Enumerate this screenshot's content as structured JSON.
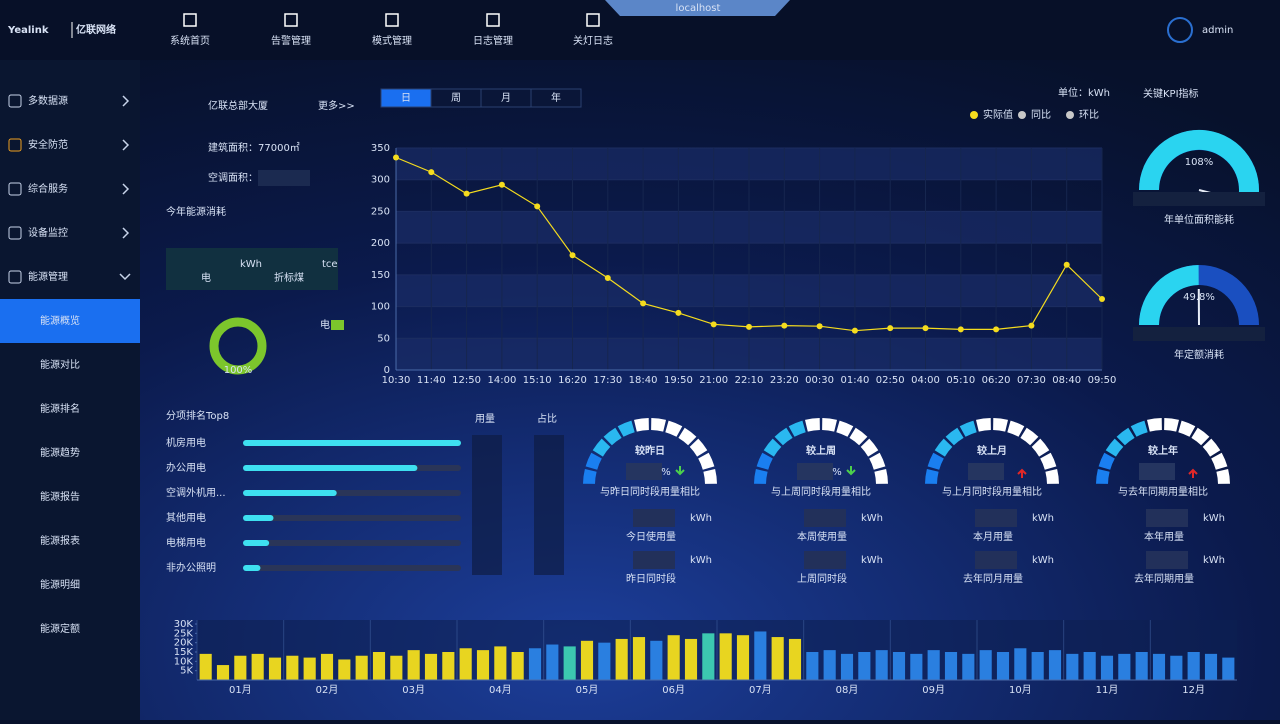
{
  "header": {
    "logo": "Yealink",
    "logo_cn": "亿联网络",
    "nav": [
      "系统首页",
      "告警管理",
      "模式管理",
      "日志管理",
      "关灯日志"
    ],
    "window": "localhost",
    "user": "admin"
  },
  "sidebar": {
    "groups": [
      "多数据源",
      "安全防范",
      "综合服务",
      "设备监控",
      "能源管理"
    ],
    "items": [
      "能源概览",
      "能源对比",
      "能源排名",
      "能源趋势",
      "能源报告",
      "能源报表",
      "能源明细",
      "能源定额"
    ],
    "active": 0
  },
  "building": {
    "name": "亿联总部大厦",
    "more": "更多>>",
    "area": "建筑面积：77000㎡",
    "ac_area": "空调面积：",
    "energy_title": "今年能源消耗",
    "unit1": "kWh",
    "unit2": "tce",
    "label1": "电",
    "label2": "折标煤"
  },
  "tabs": [
    "日",
    "周",
    "月",
    "年"
  ],
  "kpi_title": "关键KPI指标",
  "compare": [
    {
      "title": "较昨日",
      "pct": "%",
      "trend": "down",
      "desc": "与昨日同时段用量相比",
      "rows": [
        {
          "unit": "kWh",
          "label": "今日使用量"
        },
        {
          "unit": "kWh",
          "label": "昨日同时段"
        }
      ]
    },
    {
      "title": "较上周",
      "pct": "%",
      "trend": "down",
      "desc": "与上周同时段用量相比",
      "rows": [
        {
          "unit": "kWh",
          "label": "本周使用量"
        },
        {
          "unit": "kWh",
          "label": "上周同时段"
        }
      ]
    },
    {
      "title": "较上月",
      "trend": "up",
      "desc": "与上月同时段用量相比",
      "rows": [
        {
          "unit": "kWh",
          "label": "本月用量"
        },
        {
          "unit": "kWh",
          "label": "去年同月用量"
        }
      ]
    },
    {
      "title": "较上年",
      "trend": "up",
      "desc": "与去年同期用量相比",
      "rows": [
        {
          "unit": "kWh",
          "label": "本年用量"
        },
        {
          "unit": "kWh",
          "label": "去年同期用量"
        }
      ]
    }
  ],
  "chart_data": [
    {
      "type": "line",
      "unit_label": "单位：kWh",
      "categories": [
        "10:30",
        "11:40",
        "12:50",
        "14:00",
        "15:10",
        "16:20",
        "17:30",
        "18:40",
        "19:50",
        "21:00",
        "22:10",
        "23:20",
        "00:30",
        "01:40",
        "02:50",
        "04:00",
        "05:10",
        "06:20",
        "07:30",
        "08:40",
        "09:50"
      ],
      "series": [
        {
          "name": "实际值",
          "color": "#f5dc1e",
          "values": [
            335,
            312,
            278,
            292,
            258,
            181,
            145,
            105,
            90,
            72,
            68,
            70,
            69,
            62,
            66,
            66,
            64,
            64,
            70,
            166,
            112
          ]
        },
        {
          "name": "同比",
          "color": "#c8c8c8",
          "values": [
            null,
            null,
            null,
            null,
            null,
            null,
            null,
            null,
            null,
            null,
            null,
            null,
            null,
            null,
            null,
            null,
            null,
            null,
            null,
            null,
            null
          ]
        },
        {
          "name": "环比",
          "color": "#c8c8c8",
          "values": [
            null,
            null,
            null,
            null,
            null,
            null,
            null,
            null,
            null,
            null,
            null,
            null,
            null,
            null,
            null,
            null,
            null,
            null,
            null,
            null,
            null
          ]
        }
      ],
      "ylim": [
        0,
        350
      ],
      "yticks": [
        0,
        50,
        100,
        150,
        200,
        250,
        300,
        350
      ]
    },
    {
      "type": "donut",
      "categories": [
        "电"
      ],
      "values": [
        100
      ],
      "value_labels": [
        "100%"
      ],
      "colors": [
        "#7cc62c"
      ]
    },
    {
      "type": "hbar",
      "title": "分项排名Top8",
      "columns": [
        "用量",
        "占比"
      ],
      "categories": [
        "机房用电",
        "办公用电",
        "空调外机用...",
        "其他用电",
        "电梯用电",
        "非办公照明"
      ],
      "values": [
        100,
        80,
        43,
        14,
        12,
        8
      ],
      "xlim": [
        0,
        100
      ],
      "color": "#3ee0f0"
    },
    {
      "type": "gauge",
      "title": "年单位面积能耗",
      "values": [
        108
      ],
      "value_labels": [
        "108%"
      ],
      "ylim": [
        0,
        100
      ],
      "color": "#2ad4f0"
    },
    {
      "type": "gauge",
      "title": "年定额消耗",
      "values": [
        49.8
      ],
      "value_labels": [
        "49.8%"
      ],
      "ylim": [
        0,
        100
      ],
      "color": "#2ad4f0"
    },
    {
      "type": "bar",
      "categories": [
        "01月",
        "02月",
        "03月",
        "04月",
        "05月",
        "06月",
        "07月",
        "08月",
        "09月",
        "10月",
        "11月",
        "12月"
      ],
      "values": [
        [
          14000,
          8000,
          13000,
          14000,
          12000
        ],
        [
          13000,
          12000,
          14000,
          11000,
          13000
        ],
        [
          15000,
          13000,
          16000,
          14000,
          15000
        ],
        [
          17000,
          16000,
          18000,
          15000,
          17000
        ],
        [
          19000,
          18000,
          21000,
          20000,
          22000
        ],
        [
          23000,
          21000,
          24000,
          22000,
          25000
        ],
        [
          25000,
          24000,
          26000,
          23000,
          22000
        ],
        [
          15000,
          16000,
          14000,
          15000,
          16000
        ],
        [
          15000,
          14000,
          16000,
          15000,
          14000
        ],
        [
          16000,
          15000,
          17000,
          15000,
          16000
        ],
        [
          14000,
          15000,
          13000,
          14000,
          15000
        ],
        [
          14000,
          13000,
          15000,
          14000,
          12000
        ]
      ],
      "colors": [
        [
          "#e8d520",
          "#e8d520",
          "#e8d520",
          "#e8d520",
          "#e8d520"
        ],
        [
          "#e8d520",
          "#e8d520",
          "#e8d520",
          "#e8d520",
          "#e8d520"
        ],
        [
          "#e8d520",
          "#e8d520",
          "#e8d520",
          "#e8d520",
          "#e8d520"
        ],
        [
          "#e8d520",
          "#e8d520",
          "#e8d520",
          "#e8d520",
          "#2a7fe0"
        ],
        [
          "#2a7fe0",
          "#3cc8b0",
          "#e8d520",
          "#2a7fe0",
          "#e8d520"
        ],
        [
          "#e8d520",
          "#2a7fe0",
          "#e8d520",
          "#e8d520",
          "#3cc8b0"
        ],
        [
          "#e8d520",
          "#e8d520",
          "#2a7fe0",
          "#e8d520",
          "#e8d520"
        ],
        [
          "#2a7fe0",
          "#2a7fe0",
          "#2a7fe0",
          "#2a7fe0",
          "#2a7fe0"
        ],
        [
          "#2a7fe0",
          "#2a7fe0",
          "#2a7fe0",
          "#2a7fe0",
          "#2a7fe0"
        ],
        [
          "#2a7fe0",
          "#2a7fe0",
          "#2a7fe0",
          "#2a7fe0",
          "#2a7fe0"
        ],
        [
          "#2a7fe0",
          "#2a7fe0",
          "#2a7fe0",
          "#2a7fe0",
          "#2a7fe0"
        ],
        [
          "#2a7fe0",
          "#2a7fe0",
          "#2a7fe0",
          "#2a7fe0",
          "#2a7fe0"
        ]
      ],
      "ylim": [
        0,
        30000
      ],
      "yticks": [
        {
          "value": 5000,
          "label": "5K"
        },
        {
          "value": 10000,
          "label": "10K"
        },
        {
          "value": 15000,
          "label": "15K"
        },
        {
          "value": 20000,
          "label": "20K"
        },
        {
          "value": 25000,
          "label": "25K"
        },
        {
          "value": 30000,
          "label": "30K"
        }
      ]
    }
  ]
}
